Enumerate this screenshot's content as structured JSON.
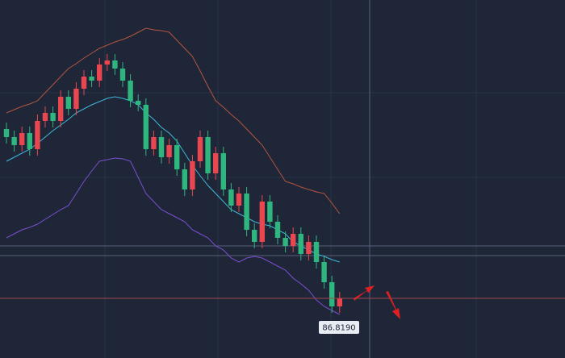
{
  "chart_data": {
    "type": "candlestick",
    "categories": [
      null,
      null,
      null,
      null,
      null,
      null,
      null,
      null,
      null,
      null,
      null,
      null,
      null,
      null,
      null,
      null,
      null,
      null,
      null,
      null,
      null,
      null,
      null,
      null,
      null,
      null,
      null,
      null,
      null,
      null,
      null,
      null,
      null,
      null,
      null,
      null,
      null,
      null,
      null,
      null,
      null,
      null,
      null,
      null
    ],
    "open": [
      88.919,
      88.819,
      88.719,
      88.869,
      88.669,
      89.019,
      89.119,
      89.019,
      89.319,
      89.169,
      89.419,
      89.569,
      89.519,
      89.719,
      89.769,
      89.669,
      89.519,
      89.269,
      89.219,
      88.669,
      88.819,
      88.569,
      88.719,
      88.419,
      88.169,
      88.519,
      88.819,
      88.369,
      88.619,
      88.169,
      87.969,
      88.119,
      87.669,
      87.519,
      88.019,
      87.769,
      87.569,
      87.469,
      87.619,
      87.369,
      87.519,
      87.269,
      87.019,
      86.719
    ],
    "close": [
      88.819,
      88.719,
      88.869,
      88.669,
      89.019,
      89.119,
      89.019,
      89.319,
      89.169,
      89.419,
      89.569,
      89.519,
      89.719,
      89.769,
      89.669,
      89.519,
      89.269,
      89.219,
      88.669,
      88.819,
      88.569,
      88.719,
      88.419,
      88.169,
      88.519,
      88.819,
      88.369,
      88.619,
      88.169,
      87.969,
      88.119,
      87.669,
      87.519,
      88.019,
      87.769,
      87.569,
      87.469,
      87.619,
      87.369,
      87.519,
      87.269,
      87.019,
      86.719,
      86.819
    ],
    "high": [
      88.999,
      88.899,
      88.949,
      88.949,
      89.099,
      89.199,
      89.199,
      89.399,
      89.399,
      89.499,
      89.649,
      89.649,
      89.799,
      89.849,
      89.849,
      89.749,
      89.599,
      89.349,
      89.299,
      88.899,
      88.899,
      88.799,
      88.799,
      88.499,
      88.599,
      88.899,
      88.899,
      88.699,
      88.699,
      88.249,
      88.199,
      88.199,
      87.749,
      88.099,
      88.099,
      87.849,
      87.649,
      87.699,
      87.699,
      87.599,
      87.599,
      87.349,
      87.099,
      86.899
    ],
    "low": [
      88.739,
      88.639,
      88.639,
      88.589,
      88.589,
      88.939,
      88.939,
      88.939,
      89.089,
      89.089,
      89.339,
      89.439,
      89.439,
      89.639,
      89.589,
      89.439,
      89.189,
      89.139,
      88.589,
      88.589,
      88.489,
      88.489,
      88.339,
      88.089,
      88.089,
      88.439,
      88.289,
      88.289,
      88.089,
      87.889,
      87.889,
      87.589,
      87.439,
      87.439,
      87.689,
      87.489,
      87.389,
      87.389,
      87.289,
      87.289,
      87.189,
      86.939,
      86.639,
      86.639
    ],
    "up_color": "#e8474f",
    "down_color": "#2fb67f",
    "series": [
      {
        "color": "#b4553f",
        "values": [
          89.119,
          89.159,
          89.199,
          89.229,
          89.269,
          89.369,
          89.469,
          89.569,
          89.669,
          89.729,
          89.799,
          89.859,
          89.919,
          89.959,
          89.999,
          90.029,
          90.069,
          90.119,
          90.169,
          90.149,
          90.139,
          90.119,
          90.019,
          89.919,
          89.819,
          89.639,
          89.449,
          89.269,
          89.189,
          89.099,
          89.019,
          88.919,
          88.819,
          88.719,
          88.569,
          88.419,
          88.269,
          88.239,
          88.199,
          88.169,
          88.139,
          88.119,
          87.999,
          87.869
        ]
      },
      {
        "color": "#7a4fd0",
        "values": [
          87.569,
          87.619,
          87.669,
          87.699,
          87.739,
          87.799,
          87.859,
          87.919,
          87.969,
          88.119,
          88.269,
          88.399,
          88.519,
          88.539,
          88.559,
          88.549,
          88.519,
          88.319,
          88.119,
          88.019,
          87.919,
          87.869,
          87.819,
          87.769,
          87.669,
          87.619,
          87.569,
          87.469,
          87.419,
          87.319,
          87.269,
          87.319,
          87.339,
          87.319,
          87.269,
          87.219,
          87.169,
          87.069,
          86.999,
          86.919,
          86.799,
          86.719,
          86.669,
          86.619
        ]
      },
      {
        "color": "#3fb8d8",
        "values": [
          88.519,
          88.569,
          88.619,
          88.669,
          88.739,
          88.819,
          88.899,
          88.969,
          89.039,
          89.119,
          89.169,
          89.219,
          89.259,
          89.299,
          89.319,
          89.299,
          89.269,
          89.219,
          89.119,
          89.039,
          88.939,
          88.869,
          88.769,
          88.619,
          88.469,
          88.339,
          88.219,
          88.119,
          88.019,
          87.919,
          87.869,
          87.819,
          87.769,
          87.739,
          87.719,
          87.669,
          87.619,
          87.519,
          87.469,
          87.419,
          87.369,
          87.339,
          87.299,
          87.269
        ]
      }
    ],
    "last_price": {
      "value": 86.819,
      "label": "86.8190"
    },
    "ylim": [
      86.079,
      90.519
    ]
  }
}
